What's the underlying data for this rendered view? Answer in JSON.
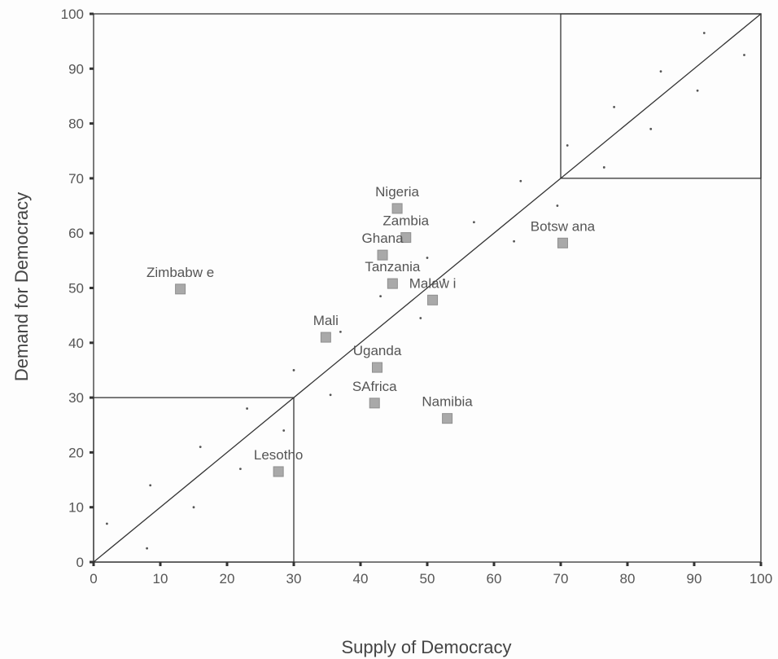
{
  "chart_data": {
    "type": "scatter",
    "title": "",
    "xlabel": "Supply of Democracy",
    "ylabel": "Demand for Democracy",
    "xlim": [
      0,
      100
    ],
    "ylim": [
      0,
      100
    ],
    "x_ticks": [
      "0",
      "10",
      "20",
      "30",
      "40",
      "50",
      "60",
      "70",
      "80",
      "90",
      "100"
    ],
    "y_ticks": [
      "0",
      "10",
      "20",
      "30",
      "40",
      "50",
      "60",
      "70",
      "80",
      "90",
      "100"
    ],
    "grid": false,
    "marker_color": "#a9a9a9",
    "line_color": "#333333",
    "reference_line": {
      "from": [
        0,
        0
      ],
      "to": [
        100,
        100
      ]
    },
    "quadrants": [
      {
        "x_min": 0,
        "x_max": 30,
        "y_min": 0,
        "y_max": 30
      },
      {
        "x_min": 70,
        "x_max": 100,
        "y_min": 70,
        "y_max": 100
      }
    ],
    "labeled_points": [
      {
        "label": "Nigeria",
        "x": 45.5,
        "y": 64.5
      },
      {
        "label": "Zambia",
        "x": 46.8,
        "y": 59.2
      },
      {
        "label": "Ghana",
        "x": 43.3,
        "y": 56.0
      },
      {
        "label": "Tanzania",
        "x": 44.8,
        "y": 50.8
      },
      {
        "label": "Malawi",
        "x": 50.8,
        "y": 47.8
      },
      {
        "label": "Zimbabwe",
        "x": 13.0,
        "y": 49.8
      },
      {
        "label": "Mali",
        "x": 34.8,
        "y": 41.0
      },
      {
        "label": "Uganda",
        "x": 42.5,
        "y": 35.5
      },
      {
        "label": "SAfrica",
        "x": 42.1,
        "y": 29.0
      },
      {
        "label": "Namibia",
        "x": 53.0,
        "y": 26.2
      },
      {
        "label": "Botswana",
        "x": 70.3,
        "y": 58.2
      },
      {
        "label": "Lesotho",
        "x": 27.7,
        "y": 16.5
      }
    ],
    "label_texts": {
      "Nigeria": "Nigeria",
      "Zambia": "Zambia",
      "Ghana": "Ghana",
      "Tanzania": "Tanzania",
      "Malawi": "Malaw i",
      "Zimbabwe": "Zimbabw e",
      "Mali": "Mali",
      "Uganda": "Uganda",
      "SAfrica": "SAfrica",
      "Namibia": "Namibia",
      "Botswana": "Botsw ana",
      "Lesotho": "Lesotho"
    },
    "small_points": [
      {
        "x": 2,
        "y": 7
      },
      {
        "x": 8.5,
        "y": 14
      },
      {
        "x": 8,
        "y": 2.5
      },
      {
        "x": 15,
        "y": 10
      },
      {
        "x": 16,
        "y": 21
      },
      {
        "x": 22,
        "y": 17
      },
      {
        "x": 23,
        "y": 28
      },
      {
        "x": 28.5,
        "y": 24
      },
      {
        "x": 30,
        "y": 35
      },
      {
        "x": 35.5,
        "y": 30.5
      },
      {
        "x": 37,
        "y": 42
      },
      {
        "x": 43,
        "y": 48.5
      },
      {
        "x": 49,
        "y": 44.5
      },
      {
        "x": 50,
        "y": 55.5
      },
      {
        "x": 52.5,
        "y": 51.5
      },
      {
        "x": 57,
        "y": 62
      },
      {
        "x": 63,
        "y": 58.5
      },
      {
        "x": 64,
        "y": 69.5
      },
      {
        "x": 69.5,
        "y": 65
      },
      {
        "x": 71,
        "y": 76
      },
      {
        "x": 76.5,
        "y": 72
      },
      {
        "x": 78,
        "y": 83
      },
      {
        "x": 83.5,
        "y": 79
      },
      {
        "x": 85,
        "y": 89.5
      },
      {
        "x": 90.5,
        "y": 86
      },
      {
        "x": 91.5,
        "y": 96.5
      },
      {
        "x": 97.5,
        "y": 92.5
      }
    ]
  }
}
